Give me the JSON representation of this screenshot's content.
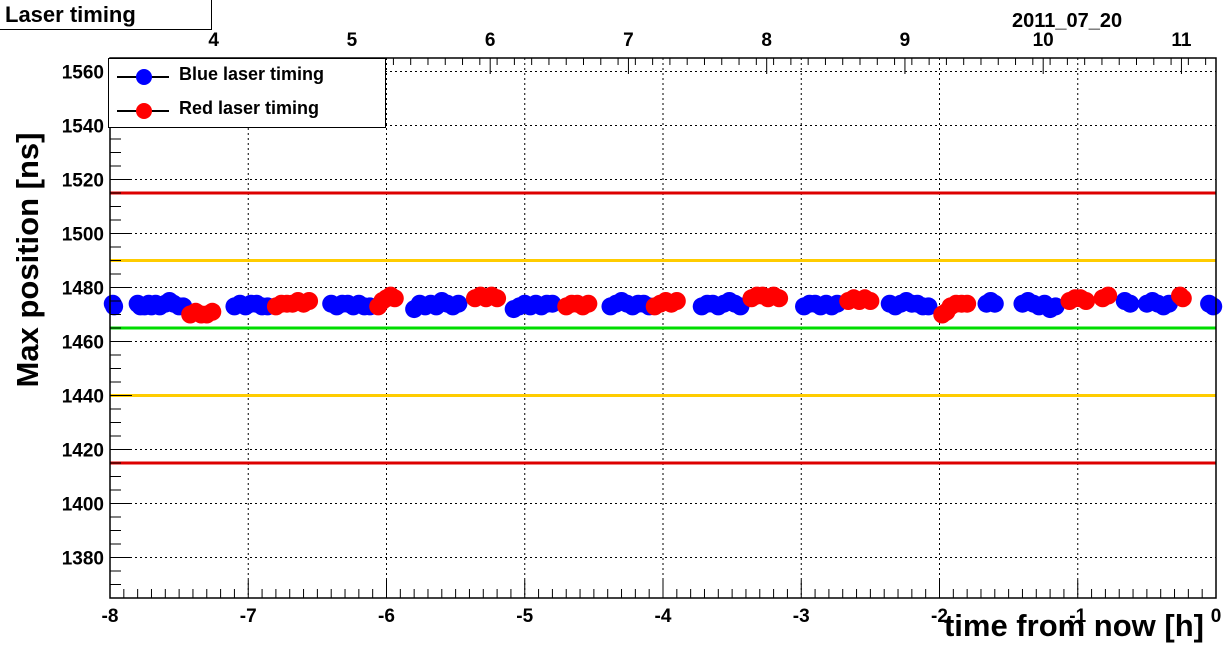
{
  "title": "Laser timing",
  "date": "2011_07_20",
  "chart_data": {
    "type": "scatter",
    "xlabel": "time from now [h]",
    "ylabel": "Max position [ns]",
    "xlim": [
      -8,
      0
    ],
    "ylim": [
      1365,
      1565
    ],
    "x_ticks": [
      "-8",
      "-7",
      "-6",
      "-5",
      "-4",
      "-3",
      "-2",
      "-1",
      "0"
    ],
    "y_ticks": [
      "1380",
      "1400",
      "1420",
      "1440",
      "1460",
      "1480",
      "1500",
      "1520",
      "1540",
      "1560"
    ],
    "top_ticks": [
      "4",
      "5",
      "6",
      "7",
      "8",
      "9",
      "10",
      "11"
    ],
    "top_axis_hours": [
      4,
      5,
      6,
      7,
      8,
      9,
      10,
      11
    ],
    "grid": true,
    "legend_position": "top-left",
    "series": [
      {
        "name": "Blue laser timing",
        "color": "#0000ff",
        "points": [
          [
            -7.98,
            1474
          ],
          [
            -7.97,
            1473
          ],
          [
            -7.8,
            1474
          ],
          [
            -7.78,
            1473
          ],
          [
            -7.75,
            1473
          ],
          [
            -7.72,
            1474
          ],
          [
            -7.7,
            1473
          ],
          [
            -7.67,
            1474
          ],
          [
            -7.64,
            1473
          ],
          [
            -7.6,
            1474
          ],
          [
            -7.57,
            1475
          ],
          [
            -7.54,
            1474
          ],
          [
            -7.5,
            1473
          ],
          [
            -7.47,
            1473
          ],
          [
            -7.1,
            1473
          ],
          [
            -7.06,
            1474
          ],
          [
            -7.02,
            1473
          ],
          [
            -6.98,
            1474
          ],
          [
            -6.94,
            1474
          ],
          [
            -6.9,
            1473
          ],
          [
            -6.86,
            1473
          ],
          [
            -6.4,
            1474
          ],
          [
            -6.36,
            1473
          ],
          [
            -6.32,
            1474
          ],
          [
            -6.28,
            1474
          ],
          [
            -6.24,
            1473
          ],
          [
            -6.2,
            1474
          ],
          [
            -6.16,
            1473
          ],
          [
            -6.12,
            1473
          ],
          [
            -5.8,
            1472
          ],
          [
            -5.76,
            1474
          ],
          [
            -5.72,
            1473
          ],
          [
            -5.68,
            1474
          ],
          [
            -5.64,
            1473
          ],
          [
            -5.6,
            1475
          ],
          [
            -5.56,
            1474
          ],
          [
            -5.52,
            1473
          ],
          [
            -5.48,
            1474
          ],
          [
            -5.08,
            1472
          ],
          [
            -5.04,
            1473
          ],
          [
            -5.0,
            1474
          ],
          [
            -4.96,
            1473
          ],
          [
            -4.92,
            1474
          ],
          [
            -4.88,
            1473
          ],
          [
            -4.84,
            1474
          ],
          [
            -4.8,
            1474
          ],
          [
            -4.38,
            1473
          ],
          [
            -4.34,
            1474
          ],
          [
            -4.3,
            1475
          ],
          [
            -4.26,
            1474
          ],
          [
            -4.22,
            1473
          ],
          [
            -4.18,
            1474
          ],
          [
            -4.14,
            1474
          ],
          [
            -4.1,
            1473
          ],
          [
            -3.72,
            1473
          ],
          [
            -3.68,
            1474
          ],
          [
            -3.64,
            1474
          ],
          [
            -3.6,
            1473
          ],
          [
            -3.56,
            1474
          ],
          [
            -3.52,
            1475
          ],
          [
            -3.48,
            1474
          ],
          [
            -3.44,
            1473
          ],
          [
            -2.98,
            1473
          ],
          [
            -2.94,
            1474
          ],
          [
            -2.9,
            1474
          ],
          [
            -2.86,
            1473
          ],
          [
            -2.82,
            1474
          ],
          [
            -2.78,
            1473
          ],
          [
            -2.74,
            1474
          ],
          [
            -2.36,
            1474
          ],
          [
            -2.32,
            1473
          ],
          [
            -2.28,
            1474
          ],
          [
            -2.24,
            1475
          ],
          [
            -2.2,
            1474
          ],
          [
            -2.16,
            1474
          ],
          [
            -2.12,
            1473
          ],
          [
            -2.08,
            1473
          ],
          [
            -1.66,
            1474
          ],
          [
            -1.63,
            1475
          ],
          [
            -1.6,
            1474
          ],
          [
            -1.4,
            1474
          ],
          [
            -1.36,
            1475
          ],
          [
            -1.32,
            1474
          ],
          [
            -1.28,
            1473
          ],
          [
            -1.24,
            1474
          ],
          [
            -1.2,
            1472
          ],
          [
            -1.16,
            1473
          ],
          [
            -0.66,
            1475
          ],
          [
            -0.62,
            1474
          ],
          [
            -0.5,
            1474
          ],
          [
            -0.46,
            1475
          ],
          [
            -0.42,
            1474
          ],
          [
            -0.38,
            1473
          ],
          [
            -0.34,
            1474
          ],
          [
            -0.05,
            1474
          ],
          [
            -0.02,
            1473
          ]
        ]
      },
      {
        "name": "Red laser timing",
        "color": "#ff0000",
        "points": [
          [
            -7.42,
            1470
          ],
          [
            -7.38,
            1471
          ],
          [
            -7.34,
            1470
          ],
          [
            -7.3,
            1470
          ],
          [
            -7.26,
            1471
          ],
          [
            -6.8,
            1473
          ],
          [
            -6.76,
            1474
          ],
          [
            -6.72,
            1474
          ],
          [
            -6.68,
            1474
          ],
          [
            -6.64,
            1475
          ],
          [
            -6.6,
            1474
          ],
          [
            -6.56,
            1475
          ],
          [
            -6.06,
            1473
          ],
          [
            -6.03,
            1475
          ],
          [
            -6.0,
            1476
          ],
          [
            -5.97,
            1477
          ],
          [
            -5.94,
            1476
          ],
          [
            -5.36,
            1476
          ],
          [
            -5.32,
            1477
          ],
          [
            -5.28,
            1476
          ],
          [
            -5.24,
            1477
          ],
          [
            -5.2,
            1476
          ],
          [
            -4.7,
            1473
          ],
          [
            -4.66,
            1474
          ],
          [
            -4.62,
            1474
          ],
          [
            -4.58,
            1473
          ],
          [
            -4.54,
            1474
          ],
          [
            -4.06,
            1473
          ],
          [
            -4.02,
            1474
          ],
          [
            -3.98,
            1475
          ],
          [
            -3.94,
            1474
          ],
          [
            -3.9,
            1475
          ],
          [
            -3.36,
            1476
          ],
          [
            -3.32,
            1477
          ],
          [
            -3.28,
            1477
          ],
          [
            -3.24,
            1476
          ],
          [
            -3.2,
            1477
          ],
          [
            -3.16,
            1476
          ],
          [
            -2.66,
            1475
          ],
          [
            -2.62,
            1476
          ],
          [
            -2.58,
            1475
          ],
          [
            -2.54,
            1476
          ],
          [
            -2.5,
            1475
          ],
          [
            -1.98,
            1470
          ],
          [
            -1.95,
            1471
          ],
          [
            -1.92,
            1473
          ],
          [
            -1.88,
            1474
          ],
          [
            -1.84,
            1474
          ],
          [
            -1.8,
            1474
          ],
          [
            -1.06,
            1475
          ],
          [
            -1.02,
            1476
          ],
          [
            -0.98,
            1476
          ],
          [
            -0.94,
            1475
          ],
          [
            -0.82,
            1476
          ],
          [
            -0.78,
            1477
          ],
          [
            -0.26,
            1477
          ],
          [
            -0.24,
            1476
          ]
        ]
      }
    ],
    "reference_lines": [
      {
        "y": 1515,
        "color": "#dd0000"
      },
      {
        "y": 1490,
        "color": "#ffcc00"
      },
      {
        "y": 1465,
        "color": "#00dd00"
      },
      {
        "y": 1440,
        "color": "#ffcc00"
      },
      {
        "y": 1415,
        "color": "#dd0000"
      }
    ]
  }
}
